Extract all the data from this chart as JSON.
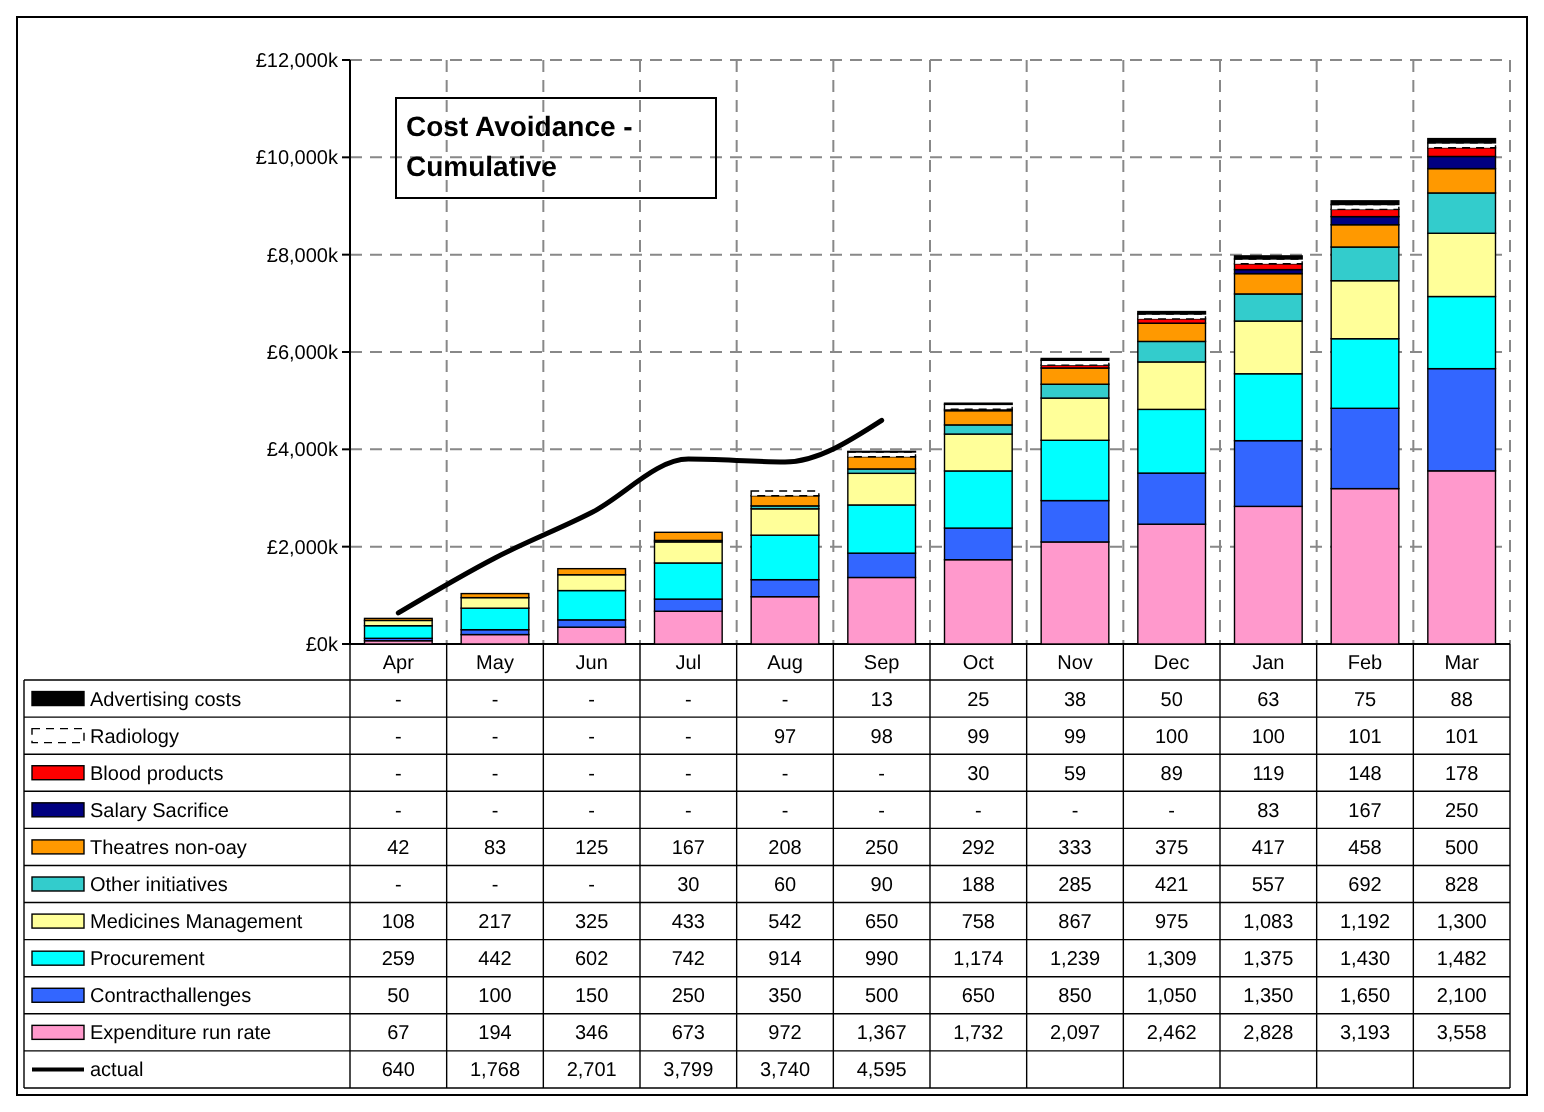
{
  "chart_data": {
    "type": "bar",
    "stacked": true,
    "title": "Cost Avoidance - Cumulative",
    "categories": [
      "Apr",
      "May",
      "Jun",
      "Jul",
      "Aug",
      "Sep",
      "Oct",
      "Nov",
      "Dec",
      "Jan",
      "Feb",
      "Mar"
    ],
    "ylim": [
      0,
      12000
    ],
    "yticks": [
      {
        "value": 0,
        "label": "£0k"
      },
      {
        "value": 2000,
        "label": "£2,000k"
      },
      {
        "value": 4000,
        "label": "£4,000k"
      },
      {
        "value": 6000,
        "label": "£6,000k"
      },
      {
        "value": 8000,
        "label": "£8,000k"
      },
      {
        "value": 10000,
        "label": "£10,000k"
      },
      {
        "value": 12000,
        "label": "£12,000k"
      }
    ],
    "grid": true,
    "legend": "bottom",
    "series": [
      {
        "name": "Expenditure run rate",
        "color": "#ff99cc",
        "values": [
          67,
          194,
          346,
          673,
          972,
          1367,
          1732,
          2097,
          2462,
          2828,
          3193,
          3558
        ],
        "value_labels": [
          "67",
          "194",
          "346",
          "673",
          "972",
          "1,367",
          "1,732",
          "2,097",
          "2,462",
          "2,828",
          "3,193",
          "3,558"
        ]
      },
      {
        "name": "Contracthallenges",
        "color": "#3366ff",
        "values": [
          50,
          100,
          150,
          250,
          350,
          500,
          650,
          850,
          1050,
          1350,
          1650,
          2100
        ],
        "value_labels": [
          "50",
          "100",
          "150",
          "250",
          "350",
          "500",
          "650",
          "850",
          "1,050",
          "1,350",
          "1,650",
          "2,100"
        ]
      },
      {
        "name": "Procurement",
        "color": "#00ffff",
        "values": [
          259,
          442,
          602,
          742,
          914,
          990,
          1174,
          1239,
          1309,
          1375,
          1430,
          1482
        ],
        "value_labels": [
          "259",
          "442",
          "602",
          "742",
          "914",
          "990",
          "1,174",
          "1,239",
          "1,309",
          "1,375",
          "1,430",
          "1,482"
        ]
      },
      {
        "name": "Medicines Management",
        "color": "#ffff99",
        "values": [
          108,
          217,
          325,
          433,
          542,
          650,
          758,
          867,
          975,
          1083,
          1192,
          1300
        ],
        "value_labels": [
          "108",
          "217",
          "325",
          "433",
          "542",
          "650",
          "758",
          "867",
          "975",
          "1,083",
          "1,192",
          "1,300"
        ]
      },
      {
        "name": "Other initiatives",
        "color": "#33cccc",
        "values": [
          null,
          null,
          null,
          30,
          60,
          90,
          188,
          285,
          421,
          557,
          692,
          828
        ],
        "value_labels": [
          "-",
          "-",
          "-",
          "30",
          "60",
          "90",
          "188",
          "285",
          "421",
          "557",
          "692",
          "828"
        ]
      },
      {
        "name": "Theatres non-oay",
        "color": "#ff9900",
        "values": [
          42,
          83,
          125,
          167,
          208,
          250,
          292,
          333,
          375,
          417,
          458,
          500
        ],
        "value_labels": [
          "42",
          "83",
          "125",
          "167",
          "208",
          "250",
          "292",
          "333",
          "375",
          "417",
          "458",
          "500"
        ]
      },
      {
        "name": "Salary Sacrifice",
        "color": "#000080",
        "values": [
          null,
          null,
          null,
          null,
          null,
          null,
          null,
          null,
          null,
          83,
          167,
          250
        ],
        "value_labels": [
          "-",
          "-",
          "-",
          "-",
          "-",
          "-",
          "-",
          "-",
          "-",
          "83",
          "167",
          "250"
        ]
      },
      {
        "name": "Blood products",
        "color": "#ff0000",
        "values": [
          null,
          null,
          null,
          null,
          null,
          null,
          30,
          59,
          89,
          119,
          148,
          178
        ],
        "value_labels": [
          "-",
          "-",
          "-",
          "-",
          "-",
          "-",
          "30",
          "59",
          "89",
          "119",
          "148",
          "178"
        ]
      },
      {
        "name": "Radiology",
        "color": "#ffffff",
        "line_style": "dashed",
        "values": [
          null,
          null,
          null,
          null,
          97,
          98,
          99,
          99,
          100,
          100,
          101,
          101
        ],
        "value_labels": [
          "-",
          "-",
          "-",
          "-",
          "97",
          "98",
          "99",
          "99",
          "100",
          "100",
          "101",
          "101"
        ]
      },
      {
        "name": "Advertising costs",
        "color": "#000000",
        "values": [
          null,
          null,
          null,
          null,
          null,
          13,
          25,
          38,
          50,
          63,
          75,
          88
        ],
        "value_labels": [
          "-",
          "-",
          "-",
          "-",
          "-",
          "13",
          "25",
          "38",
          "50",
          "63",
          "75",
          "88"
        ]
      },
      {
        "name": "actual",
        "type": "line",
        "color": "#000000",
        "values": [
          640,
          1768,
          2701,
          3799,
          3740,
          4595,
          null,
          null,
          null,
          null,
          null,
          null
        ],
        "value_labels": [
          "640",
          "1,768",
          "2,701",
          "3,799",
          "3,740",
          "4,595",
          null,
          null,
          null,
          null,
          null,
          null
        ]
      }
    ]
  }
}
